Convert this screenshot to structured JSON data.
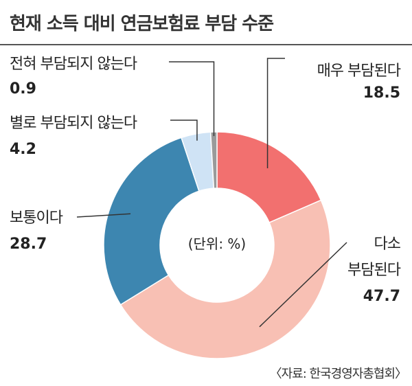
{
  "chart_data": {
    "type": "pie",
    "title": "현재 소득 대비 연금보험료 부담 수준",
    "unit_note": "(단위: %)",
    "source": "〈자료: 한국경영자총협회〉",
    "slices": [
      {
        "label": "매우 부담된다",
        "value": 18.5,
        "color": "#f2706f"
      },
      {
        "label": "다소 부담된다",
        "value": 47.7,
        "color": "#f8c0b4"
      },
      {
        "label": "보통이다",
        "value": 28.7,
        "color": "#3d86b0"
      },
      {
        "label": "별로 부담되지 않는다",
        "value": 4.2,
        "color": "#cfe3f5"
      },
      {
        "label": "전혀 부담되지 않는다",
        "value": 0.9,
        "color": "#9a9a9a"
      }
    ],
    "value_labels": [
      "18.5",
      "47.7",
      "28.7",
      "4.2",
      "0.9"
    ]
  }
}
